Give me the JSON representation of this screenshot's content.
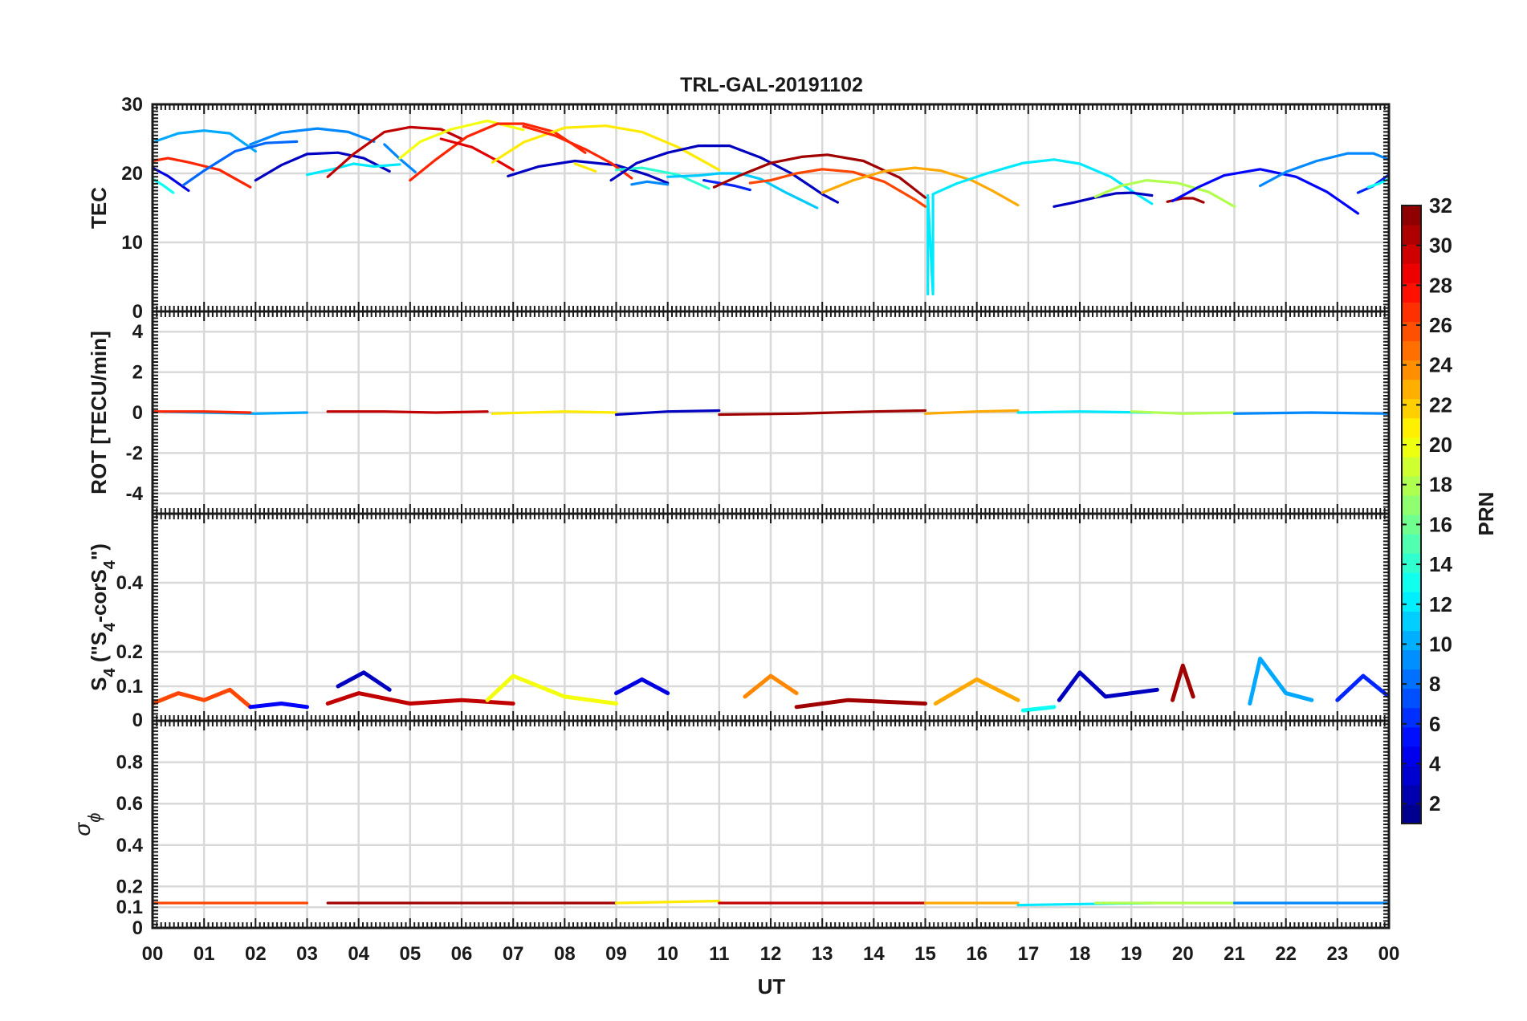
{
  "figure": {
    "title": "TRL-GAL-20191102",
    "xlabel": "UT",
    "x_tick_labels": [
      "00",
      "01",
      "02",
      "03",
      "04",
      "05",
      "06",
      "07",
      "08",
      "09",
      "10",
      "11",
      "12",
      "13",
      "14",
      "15",
      "16",
      "17",
      "18",
      "19",
      "20",
      "21",
      "22",
      "23",
      "00"
    ]
  },
  "colorbar": {
    "label": "PRN",
    "range": [
      1,
      32
    ],
    "tick_labels": [
      "2",
      "4",
      "6",
      "8",
      "10",
      "12",
      "14",
      "16",
      "18",
      "20",
      "22",
      "24",
      "26",
      "28",
      "30",
      "32"
    ],
    "colormap": "jet"
  },
  "panels": [
    {
      "id": "tec",
      "ylabel": "TEC",
      "yticks": [
        "0",
        "10",
        "20",
        "30"
      ]
    },
    {
      "id": "rot",
      "ylabel": "ROT [TECU/min]",
      "yticks": [
        "-4",
        "-2",
        "0",
        "2",
        "4"
      ]
    },
    {
      "id": "s4",
      "ylabel_parts": [
        "S",
        "4",
        " (\"S",
        "4",
        "-corS",
        "4",
        "\")"
      ],
      "yticks": [
        "0",
        "0.1",
        "0.2",
        "0.4"
      ]
    },
    {
      "id": "sigma",
      "ylabel_parts": [
        "σ",
        "ϕ"
      ],
      "yticks": [
        "0",
        "0.1",
        "0.2",
        "0.4",
        "0.6",
        "0.8"
      ]
    }
  ],
  "chart_data": [
    {
      "type": "line",
      "panel": "TEC",
      "title": "TRL-GAL-20191102",
      "xlabel": "",
      "ylabel": "TEC",
      "xlim": [
        0,
        24
      ],
      "ylim": [
        0,
        30
      ],
      "grid": true,
      "color_by": "PRN (jet colormap, 1–32)",
      "series": [
        {
          "prn": 10,
          "x": [
            0.0,
            0.5,
            1.0,
            1.5,
            2.0
          ],
          "y": [
            24.5,
            25.8,
            26.2,
            25.8,
            23.2
          ]
        },
        {
          "prn": 27,
          "x": [
            0.0,
            0.3,
            0.7,
            1.3,
            1.9
          ],
          "y": [
            21.8,
            22.2,
            21.6,
            20.5,
            18.0
          ]
        },
        {
          "prn": 4,
          "x": [
            0.0,
            0.3,
            0.7
          ],
          "y": [
            20.8,
            19.6,
            17.5
          ]
        },
        {
          "prn": 13,
          "x": [
            0.0,
            0.2,
            0.4
          ],
          "y": [
            19.2,
            18.3,
            17.2
          ]
        },
        {
          "prn": 8,
          "x": [
            0.6,
            1.0,
            1.6,
            2.2,
            2.8
          ],
          "y": [
            18.3,
            20.4,
            23.2,
            24.4,
            24.6
          ]
        },
        {
          "prn": 9,
          "x": [
            1.9,
            2.5,
            3.2,
            3.8,
            4.3
          ],
          "y": [
            24.2,
            25.9,
            26.5,
            26.0,
            24.6
          ]
        },
        {
          "prn": 3,
          "x": [
            2.0,
            2.5,
            3.0,
            3.6,
            4.1,
            4.6
          ],
          "y": [
            19.0,
            21.2,
            22.8,
            23.0,
            22.2,
            20.3
          ]
        },
        {
          "prn": 12,
          "x": [
            3.0,
            3.5,
            3.9,
            4.3,
            4.8
          ],
          "y": [
            19.8,
            20.6,
            21.4,
            21.0,
            21.3
          ]
        },
        {
          "prn": 30,
          "x": [
            3.4,
            3.9,
            4.5,
            5.0,
            5.6,
            6.0
          ],
          "y": [
            19.5,
            22.8,
            26.0,
            26.7,
            26.4,
            25.0
          ]
        },
        {
          "prn": 9,
          "x": [
            4.5,
            4.8,
            5.1
          ],
          "y": [
            24.2,
            22.1,
            20.2
          ]
        },
        {
          "prn": 20,
          "x": [
            4.8,
            5.2,
            5.8,
            6.5,
            7.2
          ],
          "y": [
            22.2,
            24.6,
            26.4,
            27.6,
            26.3
          ]
        },
        {
          "prn": 27,
          "x": [
            5.0,
            5.5,
            6.1,
            6.7,
            7.2,
            7.8,
            8.4
          ],
          "y": [
            19.0,
            22.0,
            25.3,
            27.2,
            27.2,
            26.0,
            23.0
          ]
        },
        {
          "prn": 29,
          "x": [
            5.6,
            6.2,
            6.7,
            7.0
          ],
          "y": [
            25.0,
            23.8,
            21.8,
            20.5
          ]
        },
        {
          "prn": 21,
          "x": [
            6.6,
            7.2,
            8.0,
            8.8,
            9.5,
            10.2,
            11.0
          ],
          "y": [
            21.6,
            24.5,
            26.6,
            26.9,
            26.0,
            23.8,
            20.5
          ]
        },
        {
          "prn": 3,
          "x": [
            6.9,
            7.5,
            8.2,
            9.0,
            9.6,
            10.0
          ],
          "y": [
            19.6,
            21.0,
            21.8,
            21.2,
            19.8,
            18.6
          ]
        },
        {
          "prn": 27,
          "x": [
            7.2,
            7.8,
            8.4,
            8.9,
            9.3
          ],
          "y": [
            26.8,
            25.5,
            23.5,
            21.5,
            19.3
          ]
        },
        {
          "prn": 21,
          "x": [
            8.2,
            8.6
          ],
          "y": [
            21.4,
            20.3
          ]
        },
        {
          "prn": 14,
          "x": [
            9.0,
            9.5,
            10.2,
            10.8
          ],
          "y": [
            20.5,
            20.8,
            19.8,
            17.8
          ]
        },
        {
          "prn": 3,
          "x": [
            8.9,
            9.4,
            10.0,
            10.6,
            11.2,
            11.8,
            12.4,
            13.0,
            13.3
          ],
          "y": [
            19.0,
            21.5,
            23.0,
            24.0,
            24.0,
            22.3,
            20.0,
            17.0,
            15.8
          ]
        },
        {
          "prn": 9,
          "x": [
            9.3,
            9.6,
            10.0
          ],
          "y": [
            18.4,
            18.8,
            18.4
          ]
        },
        {
          "prn": 11,
          "x": [
            10.0,
            10.6,
            11.0,
            11.4,
            11.8,
            12.3,
            12.9
          ],
          "y": [
            19.5,
            19.7,
            20.0,
            20.0,
            19.2,
            17.2,
            15.0
          ]
        },
        {
          "prn": 6,
          "x": [
            10.7,
            11.0,
            11.3,
            11.6
          ],
          "y": [
            19.0,
            18.6,
            18.2,
            17.6
          ]
        },
        {
          "prn": 31,
          "x": [
            10.9,
            11.4,
            12.0,
            12.6,
            13.1,
            13.8,
            14.5,
            15.0
          ],
          "y": [
            18.0,
            19.7,
            21.5,
            22.4,
            22.7,
            21.8,
            19.4,
            16.5
          ]
        },
        {
          "prn": 26,
          "x": [
            11.6,
            12.0,
            12.5,
            13.0,
            13.6,
            14.2,
            14.8,
            15.0
          ],
          "y": [
            18.6,
            19.0,
            20.0,
            20.6,
            20.2,
            18.8,
            16.2,
            15.2
          ]
        },
        {
          "prn": 23,
          "x": [
            13.0,
            13.6,
            14.2,
            14.8,
            15.3,
            15.9,
            16.3,
            16.8
          ],
          "y": [
            17.2,
            19.0,
            20.3,
            20.8,
            20.4,
            19.0,
            17.5,
            15.4
          ]
        },
        {
          "prn": 12,
          "x": [
            15.05,
            15.05,
            15.15,
            15.15,
            15.6,
            16.2,
            16.9,
            17.5,
            18.0,
            18.6,
            19.1,
            19.4
          ],
          "y": [
            2.5,
            16.8,
            2.5,
            17.0,
            18.5,
            20.0,
            21.5,
            22.0,
            21.4,
            19.5,
            17.0,
            15.6
          ]
        },
        {
          "prn": 3,
          "x": [
            17.5,
            17.9,
            18.3,
            18.7,
            19.0,
            19.4
          ],
          "y": [
            15.2,
            15.8,
            16.5,
            17.1,
            17.2,
            16.8
          ]
        },
        {
          "prn": 18,
          "x": [
            18.3,
            18.8,
            19.3,
            19.9,
            20.5,
            21.0
          ],
          "y": [
            16.6,
            18.2,
            19.0,
            18.6,
            17.3,
            15.2
          ]
        },
        {
          "prn": 31,
          "x": [
            19.7,
            20.0,
            20.2,
            20.4
          ],
          "y": [
            15.9,
            16.4,
            16.4,
            15.8
          ]
        },
        {
          "prn": 5,
          "x": [
            19.8,
            20.3,
            20.8,
            21.5,
            22.2,
            22.8,
            23.4
          ],
          "y": [
            16.0,
            18.0,
            19.7,
            20.6,
            19.5,
            17.3,
            14.2
          ]
        },
        {
          "prn": 9,
          "x": [
            21.5,
            22.0,
            22.6,
            23.2,
            23.7,
            24.0
          ],
          "y": [
            18.2,
            20.2,
            21.8,
            22.9,
            22.9,
            22.0
          ]
        },
        {
          "prn": 6,
          "x": [
            23.4,
            23.7,
            24.0
          ],
          "y": [
            17.2,
            18.2,
            19.8
          ]
        },
        {
          "prn": 13,
          "x": [
            23.6,
            23.8,
            24.0
          ],
          "y": [
            18.0,
            18.5,
            19.2
          ]
        }
      ]
    },
    {
      "type": "line",
      "panel": "ROT",
      "xlabel": "",
      "ylabel": "ROT [TECU/min]",
      "xlim": [
        0,
        24
      ],
      "ylim": [
        -5,
        5
      ],
      "grid": true,
      "description": "All PRNs fluctuate near zero (about ±0.2 TECU/min) throughout the day",
      "series": [
        {
          "prn": 10,
          "x": [
            0,
            1,
            2,
            3
          ],
          "y": [
            0.05,
            0.0,
            -0.05,
            0.0
          ]
        },
        {
          "prn": 27,
          "x": [
            0,
            1,
            1.9
          ],
          "y": [
            0.05,
            0.05,
            0.0
          ]
        },
        {
          "prn": 30,
          "x": [
            3.4,
            4.5,
            5.5,
            6.5
          ],
          "y": [
            0.05,
            0.05,
            0.0,
            0.05
          ]
        },
        {
          "prn": 21,
          "x": [
            6.6,
            8.0,
            9.0
          ],
          "y": [
            -0.05,
            0.05,
            0.0
          ]
        },
        {
          "prn": 3,
          "x": [
            9.0,
            10.0,
            11.0
          ],
          "y": [
            -0.1,
            0.05,
            0.1
          ]
        },
        {
          "prn": 31,
          "x": [
            11.0,
            12.5,
            14.0,
            15.0
          ],
          "y": [
            -0.1,
            -0.05,
            0.05,
            0.1
          ]
        },
        {
          "prn": 23,
          "x": [
            15.0,
            16.0,
            16.8
          ],
          "y": [
            -0.05,
            0.05,
            0.1
          ]
        },
        {
          "prn": 12,
          "x": [
            16.8,
            18.0,
            19.4
          ],
          "y": [
            0.0,
            0.05,
            0.0
          ]
        },
        {
          "prn": 18,
          "x": [
            19.0,
            20.0,
            21.0
          ],
          "y": [
            0.05,
            -0.05,
            0.0
          ]
        },
        {
          "prn": 9,
          "x": [
            21.0,
            22.5,
            24.0
          ],
          "y": [
            -0.05,
            0.0,
            -0.05
          ]
        }
      ]
    },
    {
      "type": "line",
      "panel": "S4",
      "xlabel": "",
      "ylabel": "S4 (\"S4-corS4\")",
      "xlim": [
        0,
        24
      ],
      "ylim": [
        0,
        0.6
      ],
      "grid": true,
      "description": "S4 noise floor about 0.03–0.10 for all PRNs, peaks up to about 0.18",
      "series": [
        {
          "prn": 26,
          "x": [
            0,
            0.5,
            1.0,
            1.5,
            1.9
          ],
          "y": [
            0.05,
            0.08,
            0.06,
            0.09,
            0.04
          ]
        },
        {
          "prn": 5,
          "x": [
            1.9,
            2.5,
            3.0
          ],
          "y": [
            0.04,
            0.05,
            0.04
          ]
        },
        {
          "prn": 30,
          "x": [
            3.4,
            4.0,
            5.0,
            6.0,
            7.0
          ],
          "y": [
            0.05,
            0.08,
            0.05,
            0.06,
            0.05
          ]
        },
        {
          "prn": 3,
          "x": [
            3.6,
            4.1,
            4.6
          ],
          "y": [
            0.1,
            0.14,
            0.09
          ]
        },
        {
          "prn": 20,
          "x": [
            6.5,
            7.0,
            8.0,
            9.0
          ],
          "y": [
            0.06,
            0.13,
            0.07,
            0.05
          ]
        },
        {
          "prn": 4,
          "x": [
            9.0,
            9.5,
            10.0
          ],
          "y": [
            0.08,
            0.12,
            0.08
          ]
        },
        {
          "prn": 24,
          "x": [
            11.5,
            12.0,
            12.5
          ],
          "y": [
            0.07,
            0.13,
            0.08
          ]
        },
        {
          "prn": 31,
          "x": [
            12.5,
            13.5,
            15.0
          ],
          "y": [
            0.04,
            0.06,
            0.05
          ]
        },
        {
          "prn": 23,
          "x": [
            15.2,
            16.0,
            16.8
          ],
          "y": [
            0.05,
            0.12,
            0.06
          ]
        },
        {
          "prn": 13,
          "x": [
            16.9,
            17.5
          ],
          "y": [
            0.03,
            0.04
          ]
        },
        {
          "prn": 3,
          "x": [
            17.6,
            18.0,
            18.5,
            19.5
          ],
          "y": [
            0.06,
            0.14,
            0.07,
            0.09
          ]
        },
        {
          "prn": 31,
          "x": [
            19.8,
            20.0,
            20.2
          ],
          "y": [
            0.06,
            0.16,
            0.07
          ]
        },
        {
          "prn": 10,
          "x": [
            21.3,
            21.5,
            22.0,
            22.5
          ],
          "y": [
            0.05,
            0.18,
            0.08,
            0.06
          ]
        },
        {
          "prn": 6,
          "x": [
            23.0,
            23.5,
            24.0
          ],
          "y": [
            0.06,
            0.13,
            0.07
          ]
        }
      ]
    },
    {
      "type": "line",
      "panel": "sigma_phi",
      "xlabel": "UT",
      "ylabel": "σϕ",
      "xlim": [
        0,
        24
      ],
      "ylim": [
        0,
        1
      ],
      "grid": true,
      "description": "Phase scintillation flat at about 0.11–0.13 for all PRNs",
      "series": [
        {
          "prn": 26,
          "x": [
            0,
            2,
            3
          ],
          "y": [
            0.12,
            0.12,
            0.12
          ]
        },
        {
          "prn": 31,
          "x": [
            3.4,
            5,
            7,
            9
          ],
          "y": [
            0.12,
            0.12,
            0.12,
            0.12
          ]
        },
        {
          "prn": 21,
          "x": [
            9,
            11
          ],
          "y": [
            0.12,
            0.13
          ]
        },
        {
          "prn": 30,
          "x": [
            11,
            13,
            15
          ],
          "y": [
            0.12,
            0.12,
            0.12
          ]
        },
        {
          "prn": 23,
          "x": [
            15,
            16.8
          ],
          "y": [
            0.12,
            0.12
          ]
        },
        {
          "prn": 12,
          "x": [
            16.8,
            19.4
          ],
          "y": [
            0.11,
            0.12
          ]
        },
        {
          "prn": 18,
          "x": [
            18.3,
            21
          ],
          "y": [
            0.12,
            0.12
          ]
        },
        {
          "prn": 9,
          "x": [
            21,
            24
          ],
          "y": [
            0.12,
            0.12
          ]
        }
      ]
    }
  ]
}
